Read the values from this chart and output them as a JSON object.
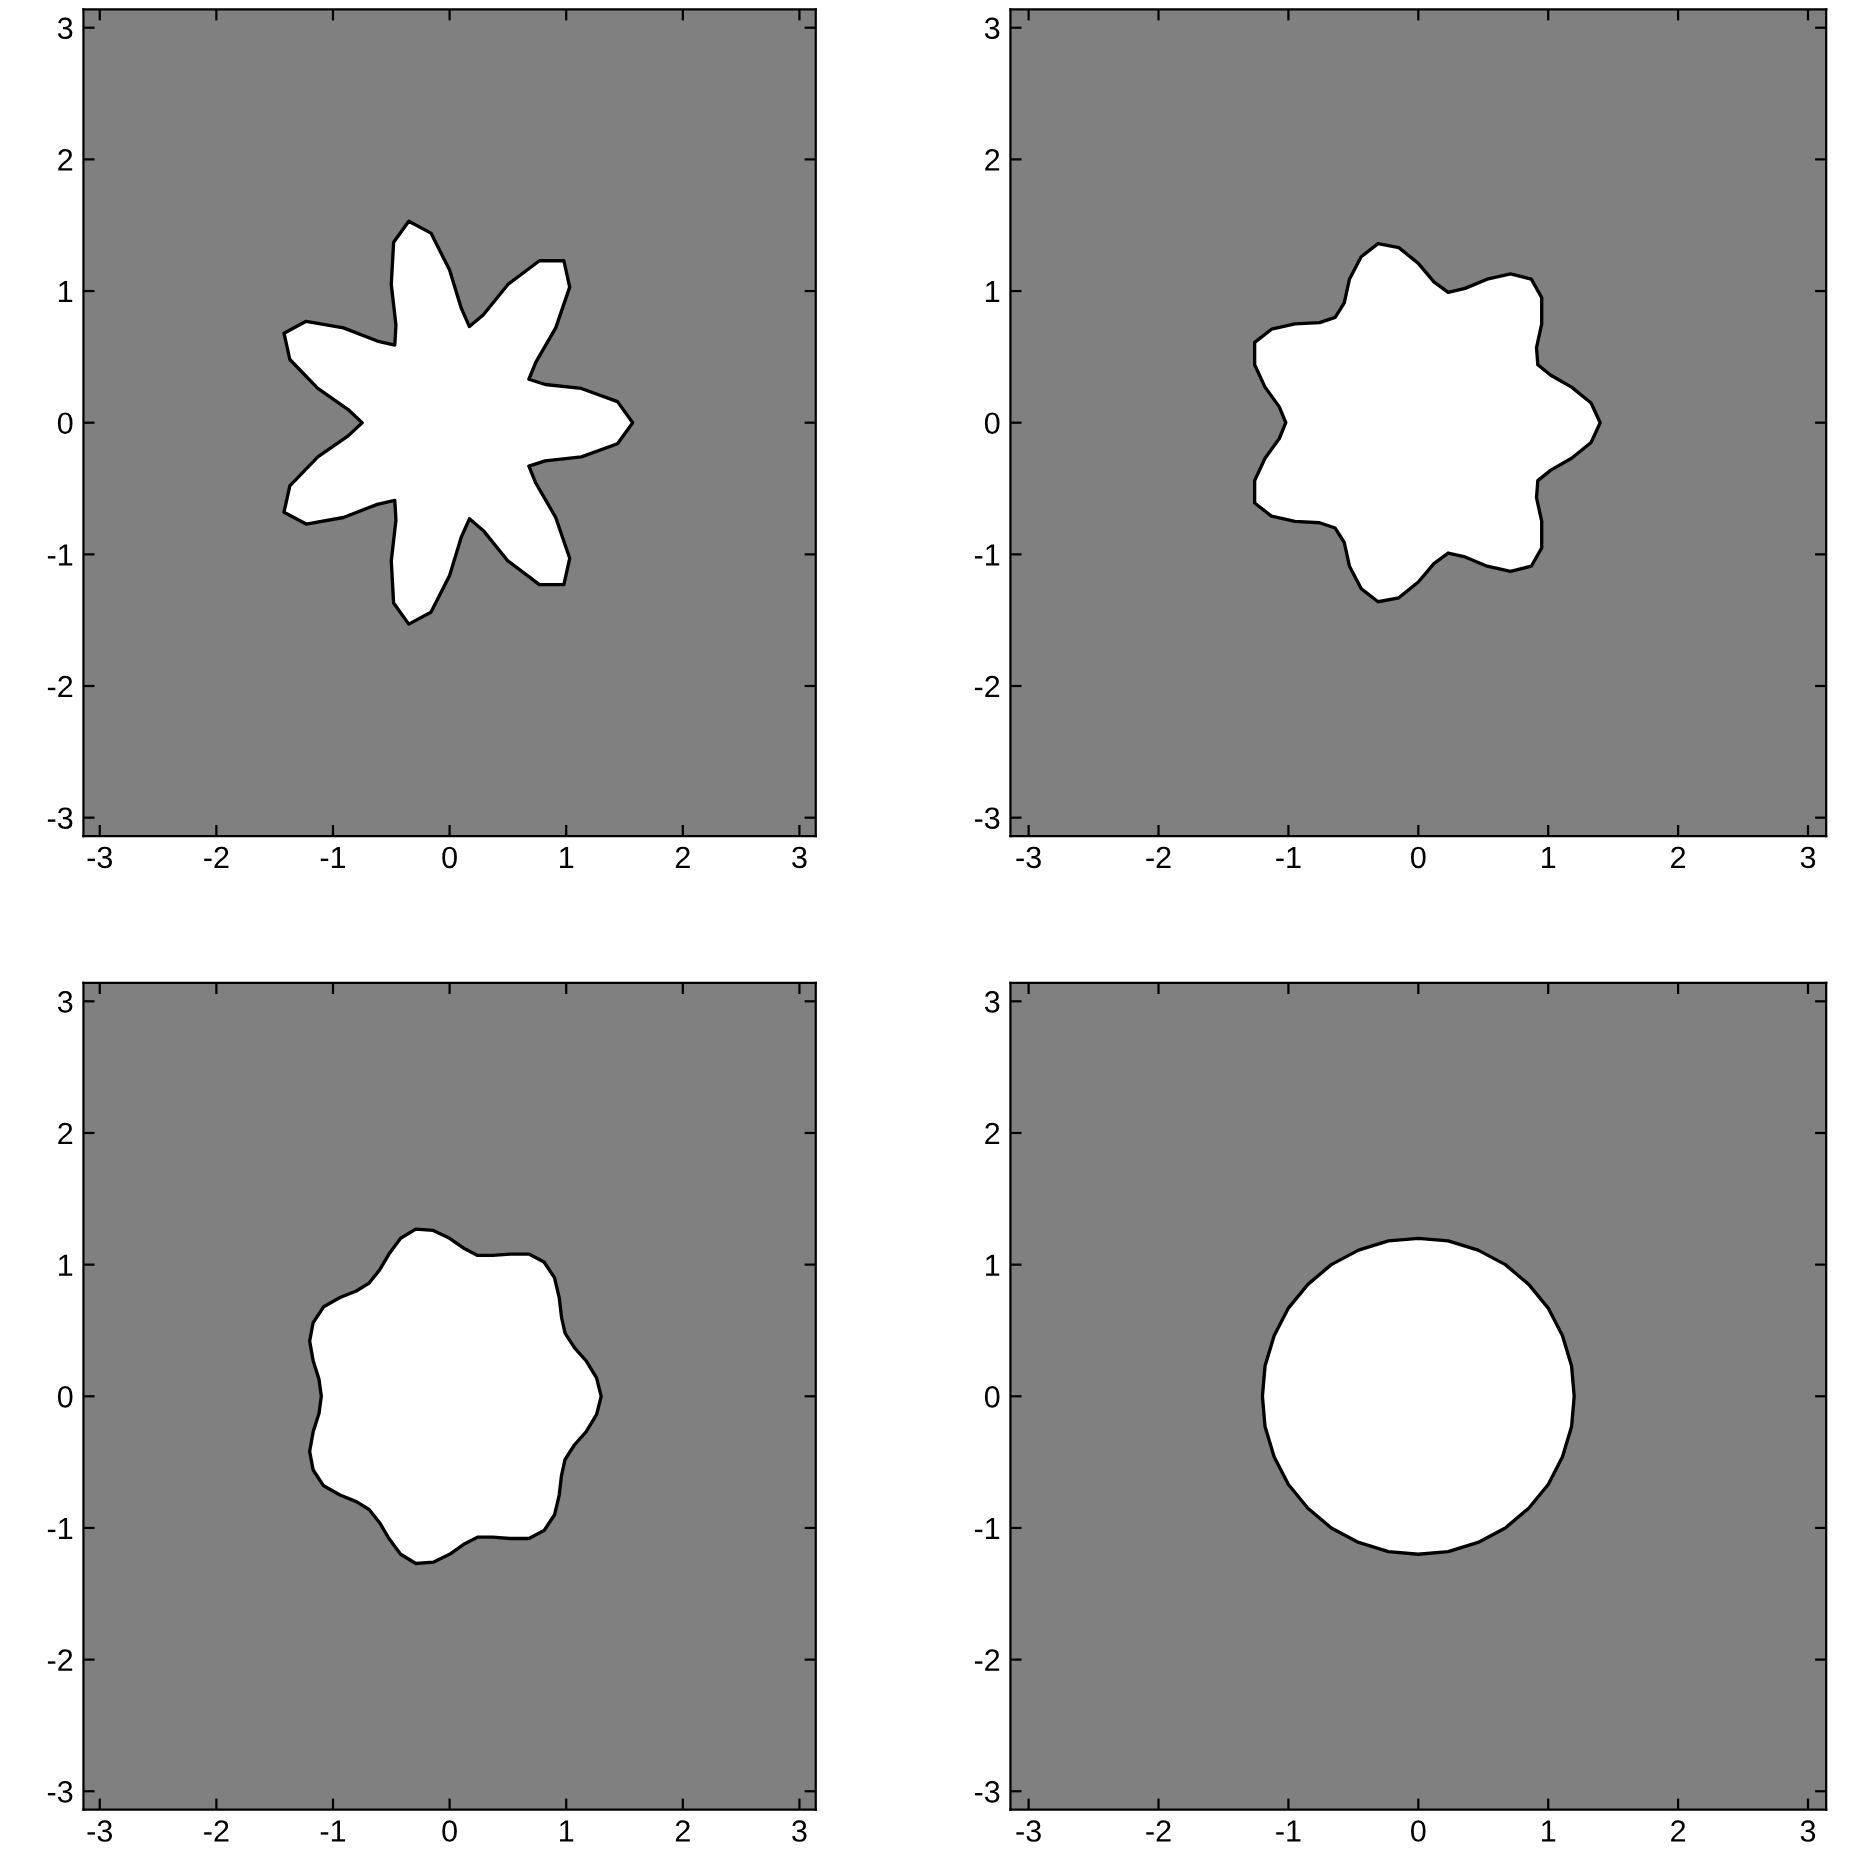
{
  "chart_data": [
    {
      "type": "area",
      "xlim": [
        -3.14,
        3.14
      ],
      "ylim": [
        -3.14,
        3.14
      ],
      "xticks": [
        -3,
        -2,
        -1,
        0,
        1,
        2,
        3
      ],
      "yticks": [
        -3,
        -2,
        -1,
        0,
        1,
        2,
        3
      ],
      "grid": false,
      "series": [
        {
          "color": "#ffffff",
          "x": [
            1.57,
            1.44,
            1.13,
            0.82,
            0.68,
            0.74,
            0.91,
            1.03,
            0.98,
            0.77,
            0.5,
            0.29,
            0.17,
            0.1,
            0,
            -0.16,
            -0.35,
            -0.48,
            -0.5,
            -0.46,
            -0.47,
            -0.62,
            -0.91,
            -1.23,
            -1.42,
            -1.37,
            -1.13,
            -0.87,
            -0.75,
            -0.87,
            -1.13,
            -1.37,
            -1.42,
            -1.23,
            -0.91,
            -0.62,
            -0.47,
            -0.46,
            -0.5,
            -0.48,
            -0.35,
            -0.16,
            0,
            0.1,
            0.17,
            0.29,
            0.5,
            0.77,
            0.98,
            1.03,
            0.91,
            0.74,
            0.68,
            0.82,
            1.13,
            1.44
          ],
          "values": [
            0,
            0.16,
            0.26,
            0.29,
            0.33,
            0.46,
            0.72,
            1.03,
            1.23,
            1.23,
            1.05,
            0.82,
            0.73,
            0.87,
            1.16,
            1.44,
            1.53,
            1.37,
            1.05,
            0.74,
            0.59,
            0.62,
            0.72,
            0.77,
            0.68,
            0.48,
            0.26,
            0.1,
            0,
            -0.1,
            -0.26,
            -0.48,
            -0.68,
            -0.77,
            -0.72,
            -0.62,
            -0.59,
            -0.74,
            -1.05,
            -1.37,
            -1.53,
            -1.44,
            -1.16,
            -0.87,
            -0.73,
            -0.82,
            -1.05,
            -1.23,
            -1.23,
            -1.03,
            -0.72,
            -0.46,
            -0.33,
            -0.29,
            -0.26,
            -0.16
          ]
        }
      ]
    },
    {
      "type": "area",
      "xlim": [
        -3.14,
        3.14
      ],
      "ylim": [
        -3.14,
        3.14
      ],
      "xticks": [
        -3,
        -2,
        -1,
        0,
        1,
        2,
        3
      ],
      "yticks": [
        -3,
        -2,
        -1,
        0,
        1,
        2,
        3
      ],
      "grid": false,
      "series": [
        {
          "color": "#ffffff",
          "x": [
            1.4,
            1.33,
            1.18,
            1.02,
            0.92,
            0.91,
            0.95,
            0.95,
            0.87,
            0.71,
            0.53,
            0.36,
            0.23,
            0.12,
            0,
            -0.15,
            -0.31,
            -0.44,
            -0.53,
            -0.57,
            -0.64,
            -0.76,
            -0.95,
            -1.13,
            -1.26,
            -1.26,
            -1.18,
            -1.07,
            -1.02,
            -1.07,
            -1.18,
            -1.26,
            -1.26,
            -1.13,
            -0.95,
            -0.76,
            -0.64,
            -0.57,
            -0.53,
            -0.44,
            -0.31,
            -0.15,
            0,
            0.12,
            0.23,
            0.36,
            0.53,
            0.71,
            0.87,
            0.95,
            0.95,
            0.91,
            0.92,
            1.02,
            1.18,
            1.33
          ],
          "values": [
            0,
            0.15,
            0.27,
            0.36,
            0.44,
            0.57,
            0.75,
            0.95,
            1.09,
            1.13,
            1.09,
            1.02,
            0.99,
            1.07,
            1.21,
            1.33,
            1.36,
            1.26,
            1.09,
            0.91,
            0.8,
            0.76,
            0.75,
            0.71,
            0.61,
            0.44,
            0.27,
            0.12,
            0,
            -0.12,
            -0.27,
            -0.44,
            -0.61,
            -0.71,
            -0.75,
            -0.76,
            -0.8,
            -0.91,
            -1.09,
            -1.26,
            -1.36,
            -1.33,
            -1.21,
            -1.07,
            -0.99,
            -1.02,
            -1.09,
            -1.13,
            -1.09,
            -0.95,
            -0.75,
            -0.57,
            -0.44,
            -0.36,
            -0.27,
            -0.15
          ]
        }
      ]
    },
    {
      "type": "area",
      "xlim": [
        -3.14,
        3.14
      ],
      "ylim": [
        -3.14,
        3.14
      ],
      "xticks": [
        -3,
        -2,
        -1,
        0,
        1,
        2,
        3
      ],
      "yticks": [
        -3,
        -2,
        -1,
        0,
        1,
        2,
        3
      ],
      "grid": false,
      "series": [
        {
          "color": "#ffffff",
          "x": [
            1.3,
            1.26,
            1.17,
            1.07,
            0.99,
            0.96,
            0.94,
            0.9,
            0.81,
            0.68,
            0.52,
            0.37,
            0.24,
            0.13,
            0,
            -0.14,
            -0.29,
            -0.42,
            -0.52,
            -0.6,
            -0.69,
            -0.8,
            -0.94,
            -1.08,
            -1.17,
            -1.2,
            -1.17,
            -1.12,
            -1.1,
            -1.12,
            -1.17,
            -1.2,
            -1.17,
            -1.08,
            -0.94,
            -0.8,
            -0.69,
            -0.6,
            -0.52,
            -0.42,
            -0.29,
            -0.14,
            0,
            0.13,
            0.24,
            0.37,
            0.52,
            0.68,
            0.81,
            0.9,
            0.94,
            0.96,
            0.99,
            1.07,
            1.17,
            1.26
          ],
          "values": [
            0,
            0.14,
            0.27,
            0.37,
            0.48,
            0.6,
            0.75,
            0.9,
            1.02,
            1.08,
            1.08,
            1.07,
            1.07,
            1.12,
            1.2,
            1.26,
            1.27,
            1.2,
            1.08,
            0.96,
            0.86,
            0.8,
            0.75,
            0.68,
            0.56,
            0.42,
            0.27,
            0.13,
            0,
            -0.13,
            -0.27,
            -0.42,
            -0.56,
            -0.68,
            -0.75,
            -0.8,
            -0.86,
            -0.96,
            -1.08,
            -1.2,
            -1.27,
            -1.26,
            -1.2,
            -1.12,
            -1.07,
            -1.07,
            -1.08,
            -1.08,
            -1.02,
            -0.9,
            -0.75,
            -0.6,
            -0.48,
            -0.37,
            -0.27,
            -0.14
          ]
        }
      ]
    },
    {
      "type": "area",
      "xlim": [
        -3.14,
        3.14
      ],
      "ylim": [
        -3.14,
        3.14
      ],
      "xticks": [
        -3,
        -2,
        -1,
        0,
        1,
        2,
        3
      ],
      "yticks": [
        -3,
        -2,
        -1,
        0,
        1,
        2,
        3
      ],
      "grid": false,
      "series": [
        {
          "color": "#ffffff",
          "x": [
            1.2,
            1.18,
            1.11,
            1,
            0.85,
            0.67,
            0.46,
            0.23,
            0,
            -0.23,
            -0.46,
            -0.67,
            -0.85,
            -1,
            -1.11,
            -1.18,
            -1.2,
            -1.18,
            -1.11,
            -1,
            -0.85,
            -0.67,
            -0.46,
            -0.23,
            0,
            0.23,
            0.46,
            0.67,
            0.85,
            1,
            1.11,
            1.18
          ],
          "values": [
            0,
            0.23,
            0.46,
            0.67,
            0.85,
            1,
            1.11,
            1.18,
            1.2,
            1.18,
            1.11,
            1,
            0.85,
            0.67,
            0.46,
            0.23,
            0,
            -0.23,
            -0.46,
            -0.67,
            -0.85,
            -1,
            -1.11,
            -1.18,
            -1.2,
            -1.18,
            -1.11,
            -1,
            -0.85,
            -0.67,
            -0.46,
            -0.23
          ]
        }
      ]
    }
  ]
}
